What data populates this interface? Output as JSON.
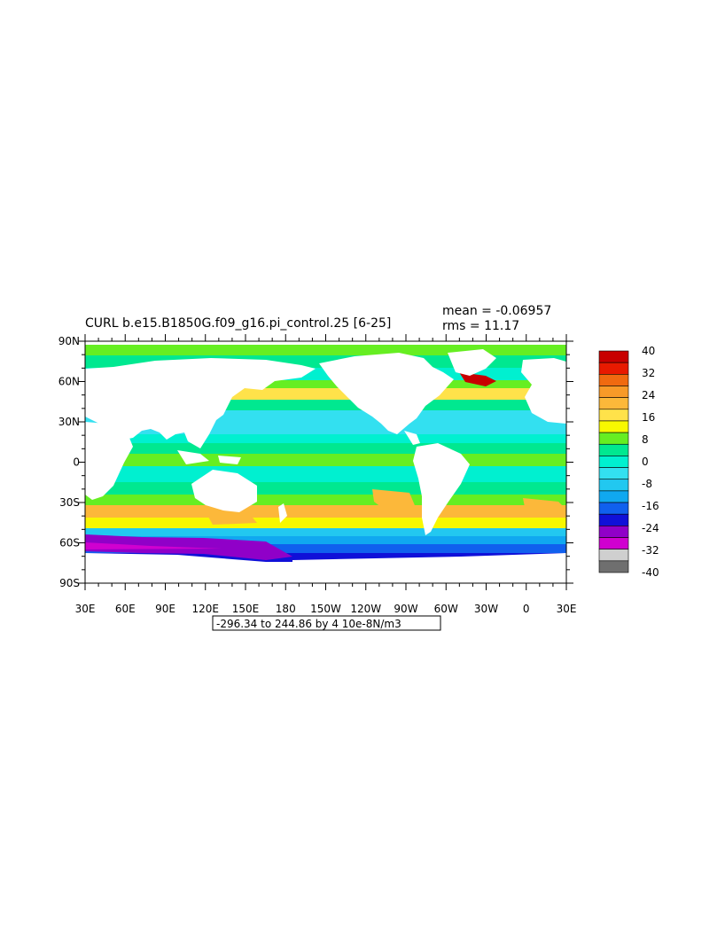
{
  "title": "CURL b.e15.B1850G.f09_g16.pi_control.25 [6-25]",
  "stats": {
    "mean": "mean = -0.06957",
    "rms": "rms = 11.17"
  },
  "range_note": "-296.34 to 244.86 by 4 10e-8N/m3",
  "chart_data": {
    "type": "heatmap",
    "x_ticks": [
      "30E",
      "60E",
      "90E",
      "120E",
      "150E",
      "180",
      "150W",
      "120W",
      "90W",
      "60W",
      "30W",
      "0",
      "30E"
    ],
    "y_ticks": [
      "90N",
      "60N",
      "30N",
      "0",
      "30S",
      "60S",
      "90S"
    ],
    "xlim": [
      30,
      390
    ],
    "ylim": [
      -90,
      90
    ],
    "colorbar": {
      "labels": [
        "40",
        "32",
        "24",
        "16",
        "8",
        "0",
        "-8",
        "-16",
        "-24",
        "-32",
        "-40"
      ],
      "colors": [
        "#c80000",
        "#e81a00",
        "#f06a10",
        "#f89a28",
        "#fcb83a",
        "#ffe24a",
        "#f8f800",
        "#66ee22",
        "#00e890",
        "#00f0d0",
        "#33e0f0",
        "#22c8f0",
        "#10a8f0",
        "#1060ee",
        "#1010d8",
        "#9000c8",
        "#d000d0",
        "#cfcfcf",
        "#6f6f6f"
      ]
    }
  }
}
